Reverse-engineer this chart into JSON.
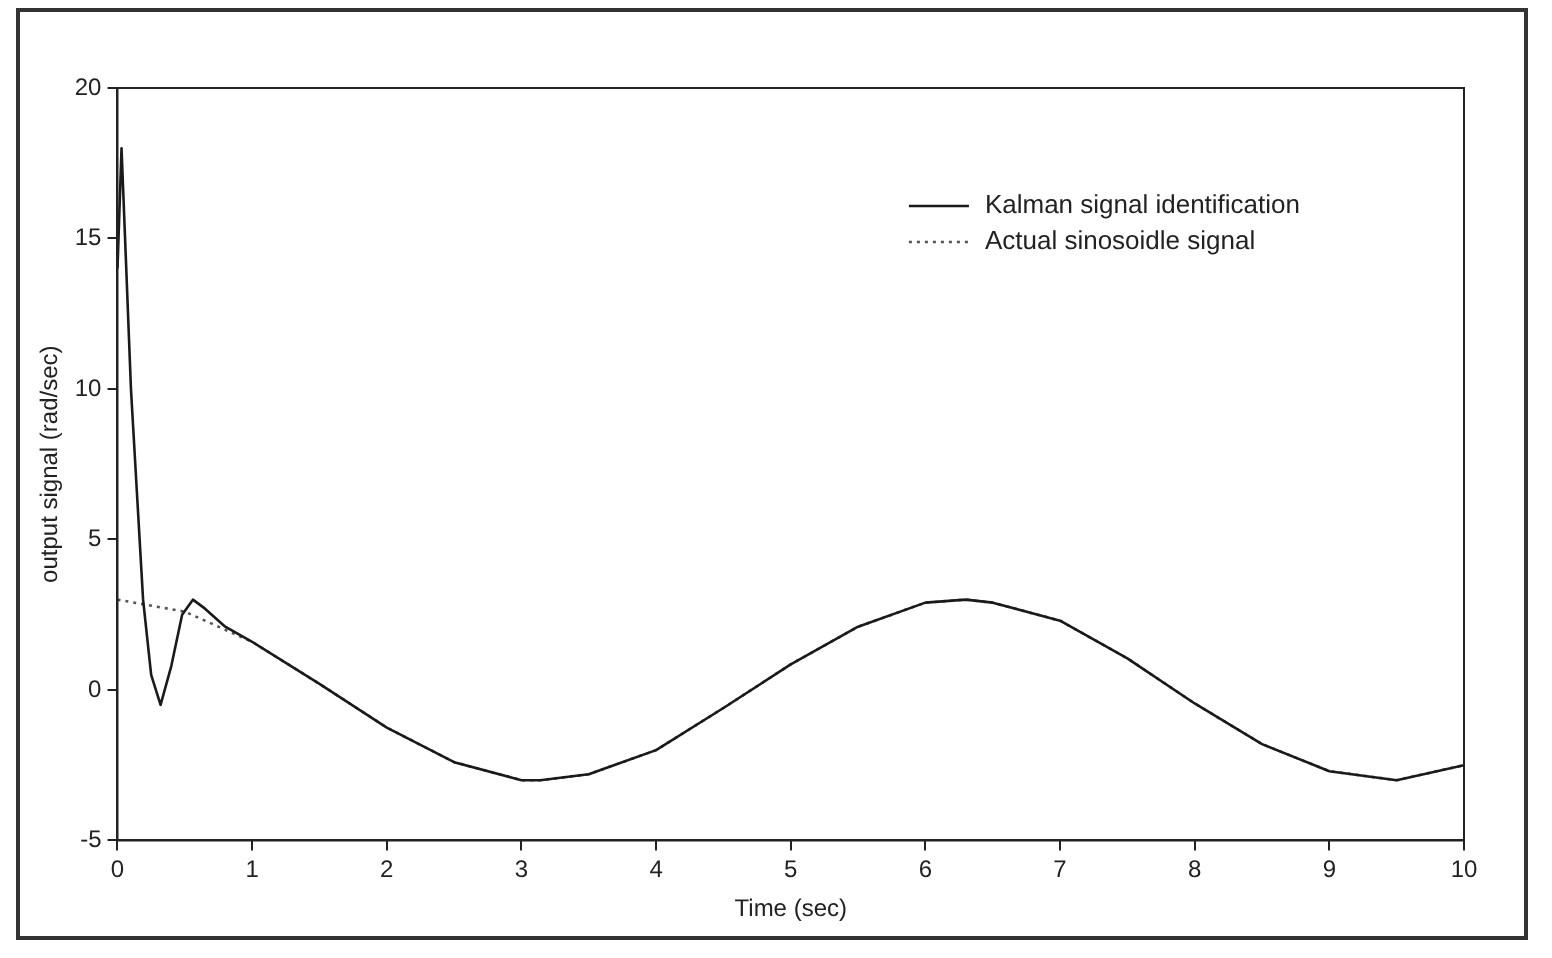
{
  "chart_data": {
    "type": "line",
    "xlabel": "Time (sec)",
    "ylabel": "output signal (rad/sec)",
    "xlim": [
      0,
      10
    ],
    "xticks": [
      0,
      1,
      2,
      3,
      4,
      5,
      6,
      7,
      8,
      9,
      10
    ],
    "ylim": [
      -5,
      20
    ],
    "yticks": [
      -5,
      0,
      5,
      10,
      15,
      20
    ],
    "grid": false,
    "legend": "top right",
    "marker": "none",
    "series": [
      {
        "name": "Kalman signal identification",
        "color": "#1a1a1a",
        "line_style": "solid",
        "x": [
          0,
          0.03,
          0.1,
          0.19,
          0.25,
          0.32,
          0.4,
          0.48,
          0.56,
          0.65,
          0.8,
          1,
          1.5,
          2,
          2.5,
          3,
          3.14,
          3.5,
          4,
          4.5,
          5,
          5.5,
          6,
          6.3,
          6.5,
          7,
          7.5,
          8,
          8.5,
          9,
          9.5,
          10
        ],
        "values": [
          14,
          18,
          10,
          3,
          0.5,
          -0.5,
          0.8,
          2.5,
          3,
          2.7,
          2.1,
          1.6,
          0.2,
          -1.25,
          -2.4,
          -3,
          -3,
          -2.8,
          -2,
          -0.6,
          0.85,
          2.1,
          2.9,
          3,
          2.9,
          2.3,
          1.05,
          -0.45,
          -1.8,
          -2.7,
          -3,
          -2.5
        ]
      },
      {
        "name": "Actual sinosoidle signal",
        "color": "#555555",
        "line_style": "dotted",
        "x": [
          0,
          0.5,
          1,
          1.5,
          2,
          2.5,
          3,
          3.14,
          3.5,
          4,
          4.5,
          5,
          5.5,
          6,
          6.3,
          6.5,
          7,
          7.5,
          8,
          8.5,
          9,
          9.5,
          10
        ],
        "values": [
          3,
          2.6,
          1.6,
          0.2,
          -1.25,
          -2.4,
          -3,
          -3,
          -2.8,
          -2,
          -0.6,
          0.85,
          2.1,
          2.9,
          3,
          2.9,
          2.3,
          1.05,
          -0.45,
          -1.8,
          -2.7,
          -3,
          -2.5
        ]
      }
    ]
  }
}
